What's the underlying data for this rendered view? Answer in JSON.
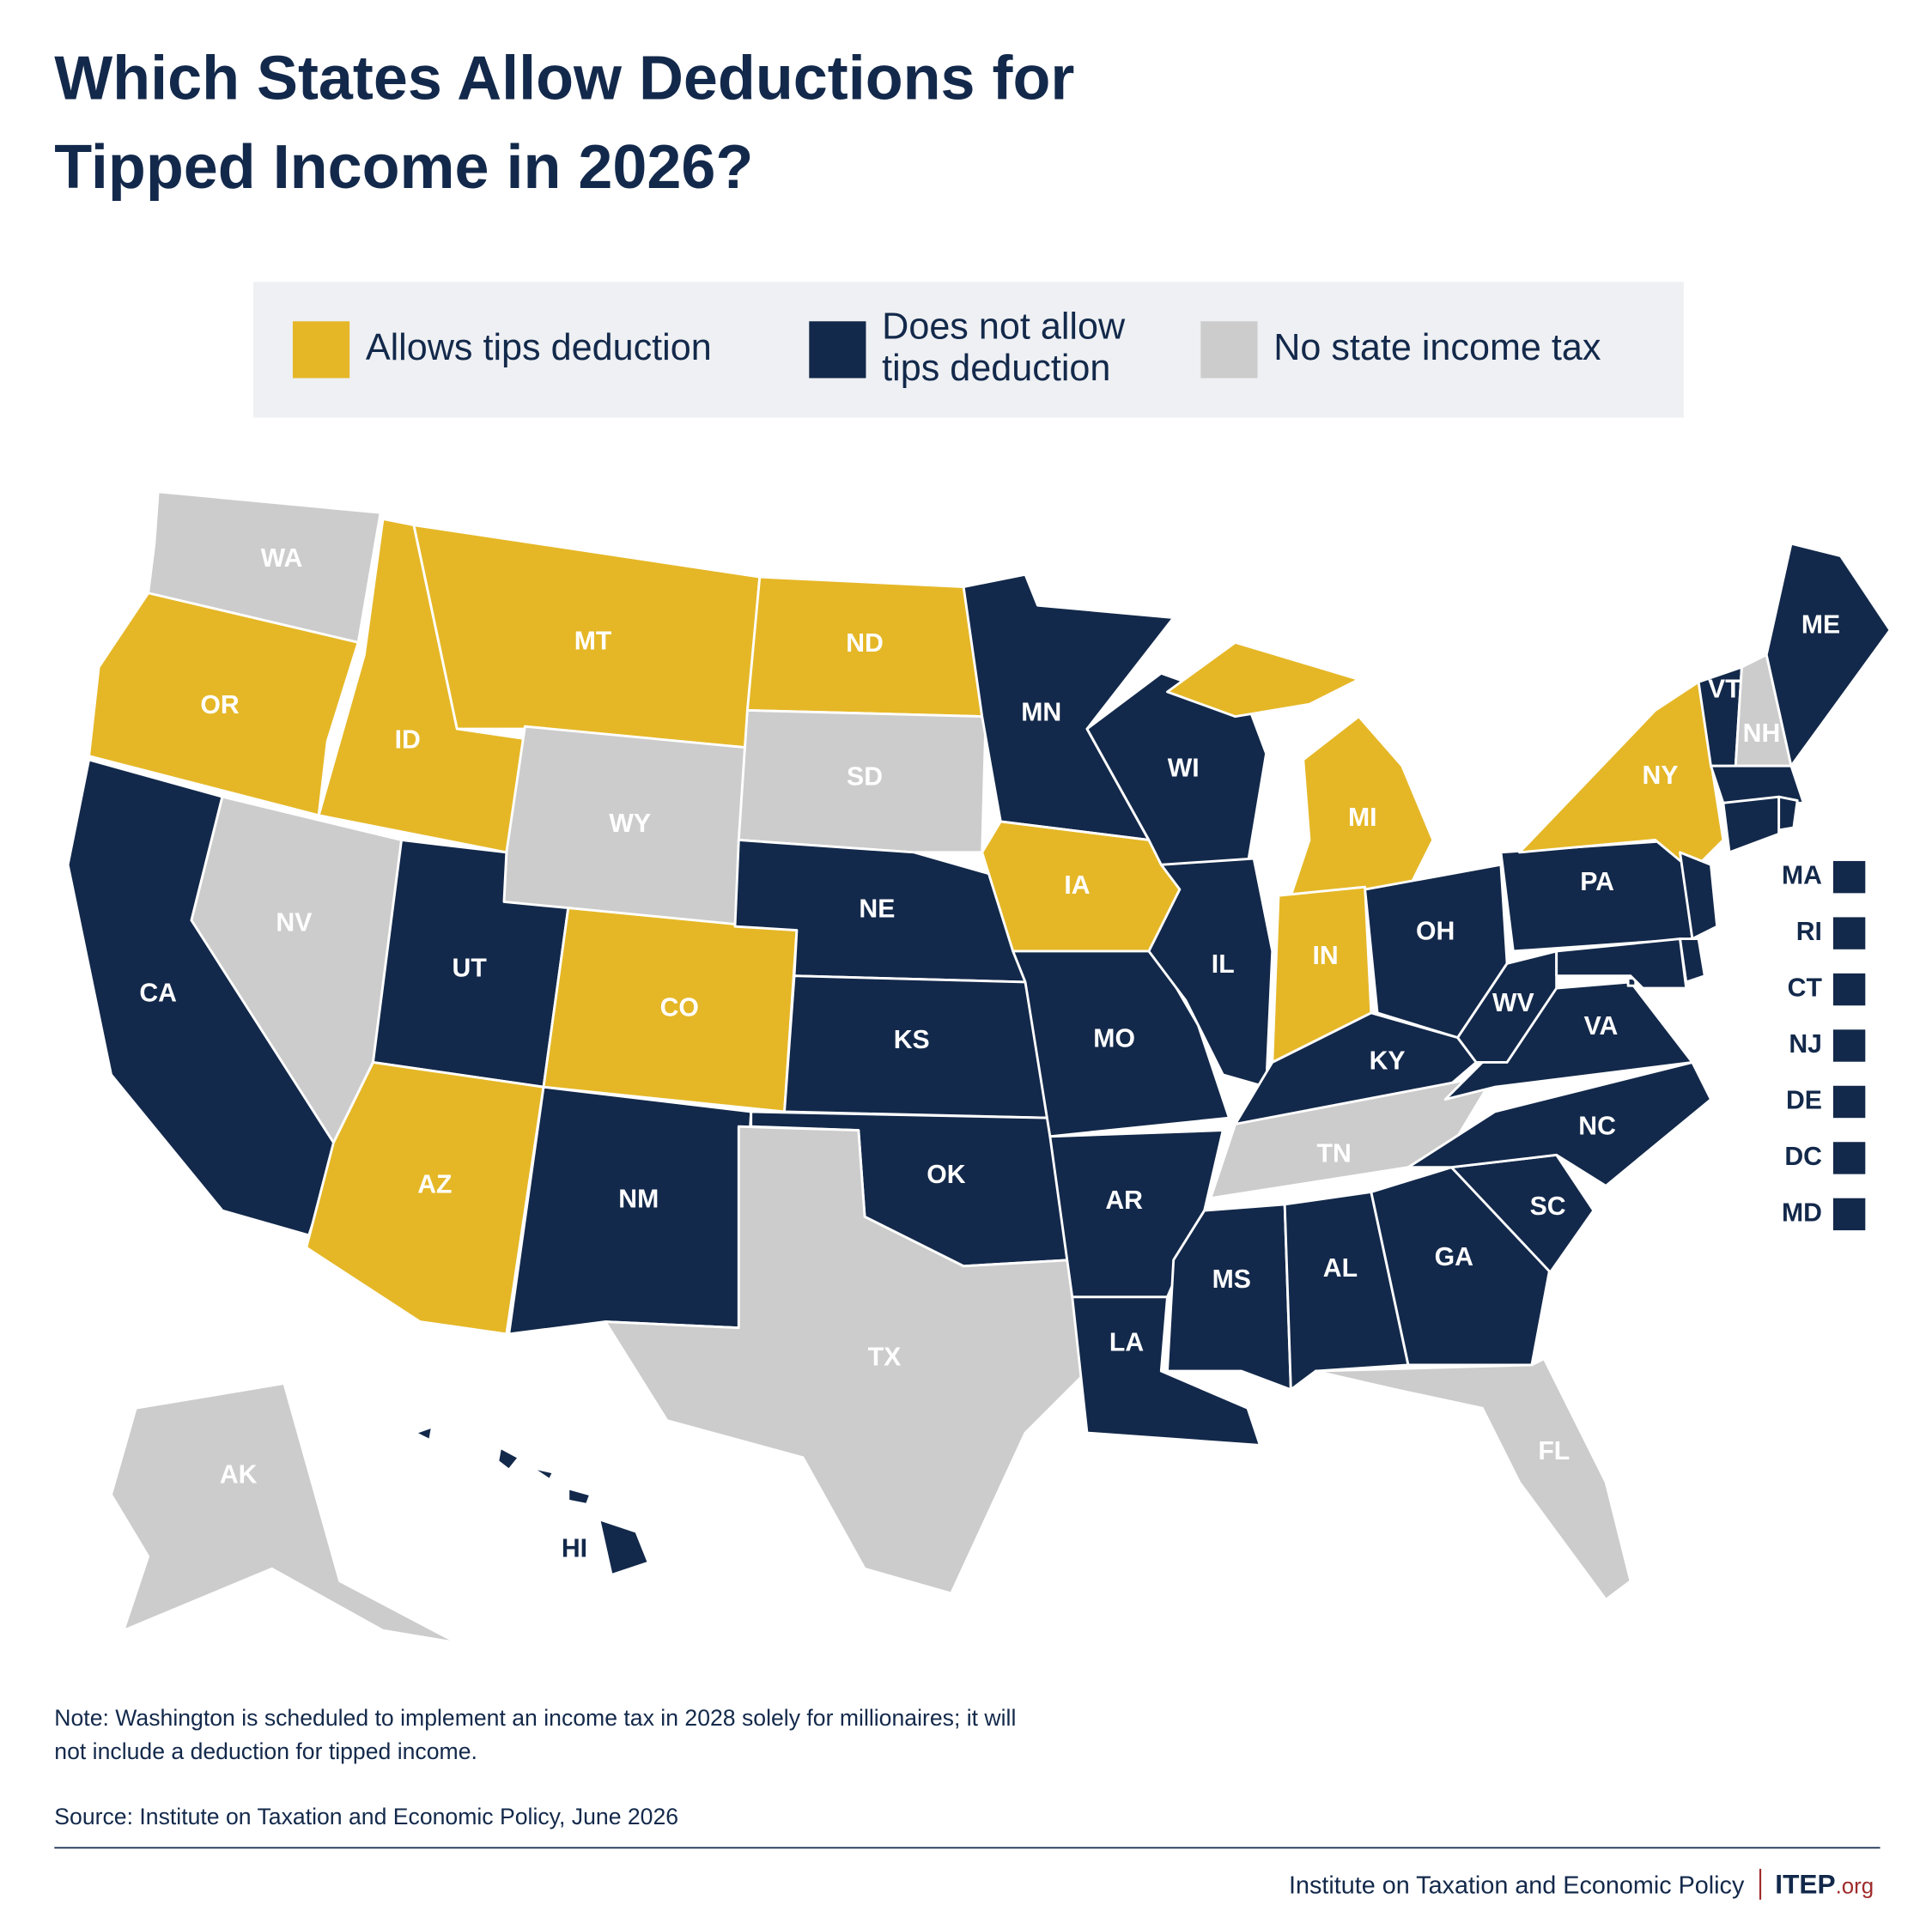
{
  "title": [
    "Which States Allow Deductions for",
    "Tipped Income in 2026?"
  ],
  "legend": [
    {
      "label": [
        "Allows tips deduction"
      ],
      "color": "#e5b727"
    },
    {
      "label": [
        "Does not allow",
        "tips deduction"
      ],
      "color": "#13294b"
    },
    {
      "label": [
        "No state income tax"
      ],
      "color": "#cccccc"
    }
  ],
  "states": [
    {
      "label": "WA",
      "category": 2
    },
    {
      "label": "OR",
      "category": 0
    },
    {
      "label": "CA",
      "category": 1
    },
    {
      "label": "NV",
      "category": 2
    },
    {
      "label": "ID",
      "category": 0
    },
    {
      "label": "MT",
      "category": 0
    },
    {
      "label": "WY",
      "category": 2
    },
    {
      "label": "UT",
      "category": 1
    },
    {
      "label": "AZ",
      "category": 0
    },
    {
      "label": "CO",
      "category": 0
    },
    {
      "label": "NM",
      "category": 1
    },
    {
      "label": "ND",
      "category": 0
    },
    {
      "label": "SD",
      "category": 2
    },
    {
      "label": "NE",
      "category": 1
    },
    {
      "label": "KS",
      "category": 1
    },
    {
      "label": "OK",
      "category": 1
    },
    {
      "label": "TX",
      "category": 2
    },
    {
      "label": "MN",
      "category": 1
    },
    {
      "label": "IA",
      "category": 0
    },
    {
      "label": "MO",
      "category": 1
    },
    {
      "label": "AR",
      "category": 1
    },
    {
      "label": "LA",
      "category": 1
    },
    {
      "label": "WI",
      "category": 1
    },
    {
      "label": "IL",
      "category": 1
    },
    {
      "label": "MI",
      "category": 0
    },
    {
      "label": "IN",
      "category": 0
    },
    {
      "label": "OH",
      "category": 1
    },
    {
      "label": "KY",
      "category": 1
    },
    {
      "label": "TN",
      "category": 2
    },
    {
      "label": "MS",
      "category": 1
    },
    {
      "label": "AL",
      "category": 1
    },
    {
      "label": "GA",
      "category": 1
    },
    {
      "label": "FL",
      "category": 2
    },
    {
      "label": "SC",
      "category": 1
    },
    {
      "label": "NC",
      "category": 1
    },
    {
      "label": "VA",
      "category": 1
    },
    {
      "label": "WV",
      "category": 1
    },
    {
      "label": "PA",
      "category": 1
    },
    {
      "label": "NY",
      "category": 0
    },
    {
      "label": "VT",
      "category": 1
    },
    {
      "label": "NH",
      "category": 2
    },
    {
      "label": "ME",
      "category": 1
    },
    {
      "label": "MA",
      "category": 1
    },
    {
      "label": "RI",
      "category": 1
    },
    {
      "label": "CT",
      "category": 1
    },
    {
      "label": "NJ",
      "category": 1
    },
    {
      "label": "DE",
      "category": 1
    },
    {
      "label": "DC",
      "category": 1
    },
    {
      "label": "MD",
      "category": 1
    },
    {
      "label": "AK",
      "category": 2
    },
    {
      "label": "HI",
      "category": 1
    }
  ],
  "note": [
    "Note: Washington is scheduled to implement an income tax in 2028 solely for millionaires; it will",
    "not include a deduction for tipped income."
  ],
  "source": "Source: Institute on Taxation and Economic Policy, June 2026",
  "footer": {
    "organization": "Institute on Taxation and Economic Policy",
    "brand": "ITEP",
    "domain": ".org"
  }
}
